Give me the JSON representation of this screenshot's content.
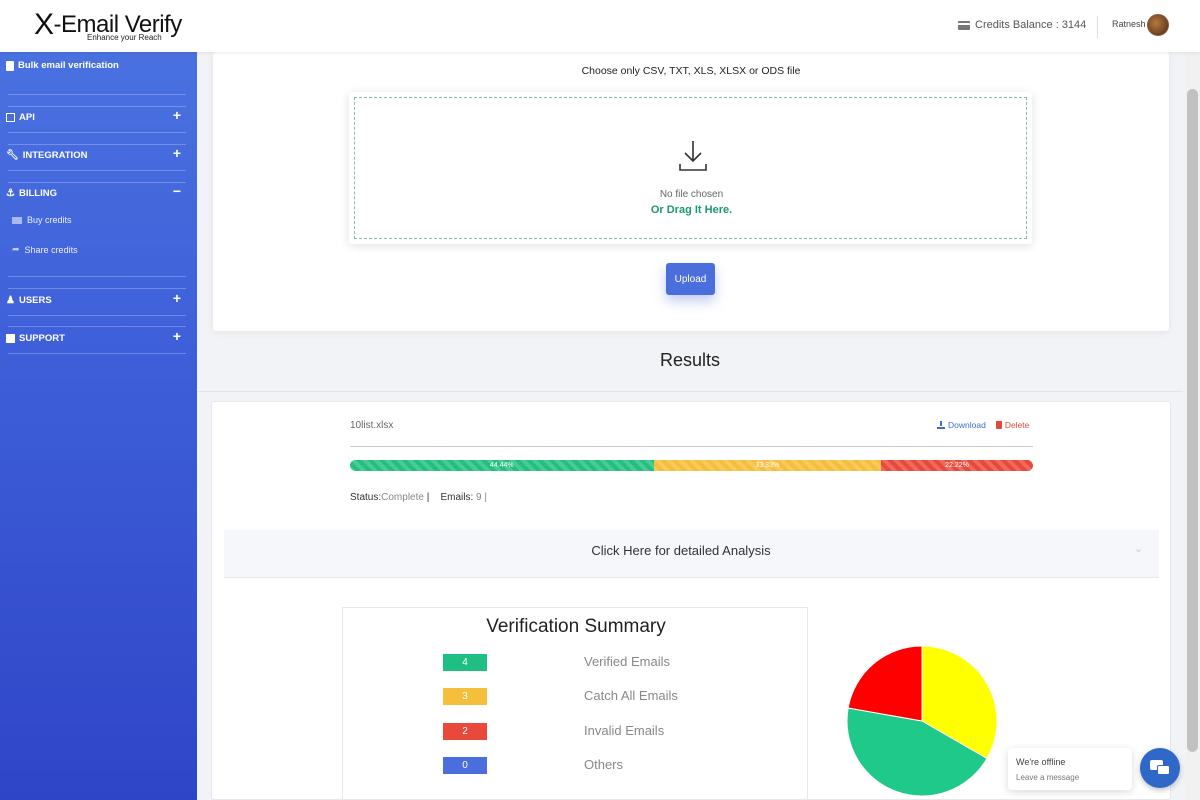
{
  "brand": {
    "name": "X-Email Verify",
    "x": "X",
    "rest": "-Email Verify",
    "tagline": "Enhance your Reach"
  },
  "header": {
    "credits_label": "Credits Balance : 3144",
    "user_name": "Ratnesh"
  },
  "sidebar": {
    "items": [
      {
        "label": "Bulk email verification"
      },
      {
        "label": "API",
        "toggle": "+"
      },
      {
        "label": "INTEGRATION",
        "toggle": "+"
      },
      {
        "label": "BILLING",
        "toggle": "−"
      },
      {
        "label": "USERS",
        "toggle": "+"
      },
      {
        "label": "SUPPORT",
        "toggle": "+"
      }
    ],
    "billing_sub": [
      {
        "label": "Buy credits"
      },
      {
        "label": "Share credits"
      }
    ]
  },
  "upload": {
    "note": "Choose only CSV, TXT, XLS, XLSX or ODS file",
    "no_file": "No file chosen",
    "drag": "Or Drag It Here.",
    "button": "Upload"
  },
  "results": {
    "title": "Results",
    "filename": "10list.xlsx",
    "download": "Download",
    "delete": "Delete",
    "progress": [
      {
        "label": "44.44%",
        "percent": 44.44,
        "color": "#22c07f"
      },
      {
        "label": "33.33%",
        "percent": 33.33,
        "color": "#f5be3b"
      },
      {
        "label": "22.22%",
        "percent": 22.22,
        "color": "#e8493b"
      }
    ],
    "status_label": "Status:",
    "status_value": "Complete",
    "status_sep": " |",
    "emails_label": "Emails:",
    "emails_value": "9",
    "emails_sep": " |",
    "analysis": "Click Here for detailed Analysis"
  },
  "summary": {
    "title": "Verification Summary",
    "rows": [
      {
        "count": "4",
        "label": "Verified Emails",
        "color": "#1fbf83"
      },
      {
        "count": "3",
        "label": "Catch All Emails",
        "color": "#f5be3b"
      },
      {
        "count": "2",
        "label": "Invalid Emails",
        "color": "#e8493b"
      },
      {
        "count": "0",
        "label": "Others",
        "color": "#4a6fdc"
      }
    ]
  },
  "chart_data": {
    "type": "pie",
    "categories": [
      "Verified Emails",
      "Catch All Emails",
      "Invalid Emails",
      "Others"
    ],
    "values": [
      4,
      3,
      2,
      0
    ],
    "colors": [
      "#1fc98a",
      "#ffff00",
      "#ff0000",
      "#4a6fdc"
    ]
  },
  "chat": {
    "line1": "We're offline",
    "line2": "Leave a message"
  }
}
